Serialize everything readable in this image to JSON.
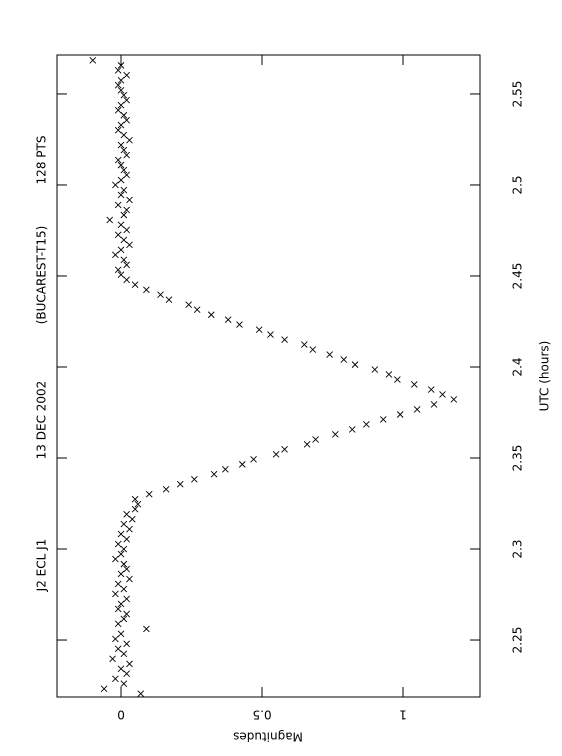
{
  "chart_data": {
    "type": "scatter",
    "annotations": [
      "J2 ECL J1",
      "13 DEC 2002",
      "(BUCAREST-T15)",
      "128 PTS"
    ],
    "x_label": "UTC (hours)",
    "y_label": "Magnitudes",
    "xlim": [
      2.2187,
      2.5714
    ],
    "xticks": [
      2.25,
      2.3,
      2.35,
      2.4,
      2.45,
      2.5,
      2.55
    ],
    "ylim": [
      -0.227,
      1.273
    ],
    "yticks": [
      0,
      0.5,
      1
    ],
    "color": "#000000",
    "x": [
      2.2205,
      2.2232,
      2.226,
      2.2287,
      2.2315,
      2.2342,
      2.2369,
      2.2397,
      2.2424,
      2.2452,
      2.2479,
      2.2506,
      2.2534,
      2.2561,
      2.2589,
      2.2616,
      2.2643,
      2.2671,
      2.2698,
      2.2726,
      2.2753,
      2.278,
      2.2808,
      2.2835,
      2.2863,
      2.289,
      2.2917,
      2.2945,
      2.2972,
      2.3,
      2.3027,
      2.3054,
      2.3082,
      2.3109,
      2.3137,
      2.3164,
      2.3191,
      2.3219,
      2.3246,
      2.3274,
      2.3301,
      2.3328,
      2.3356,
      2.3383,
      2.3411,
      2.3438,
      2.3465,
      2.3493,
      2.352,
      2.3548,
      2.3575,
      2.3602,
      2.363,
      2.3657,
      2.3685,
      2.3712,
      2.3739,
      2.3767,
      2.3794,
      2.3822,
      2.3849,
      2.3876,
      2.3904,
      2.3931,
      2.3959,
      2.3986,
      2.4013,
      2.4041,
      2.4068,
      2.4096,
      2.4123,
      2.415,
      2.4178,
      2.4205,
      2.4233,
      2.426,
      2.4287,
      2.4315,
      2.4342,
      2.437,
      2.4397,
      2.4424,
      2.4452,
      2.4479,
      2.4507,
      2.4534,
      2.4561,
      2.4589,
      2.4616,
      2.4644,
      2.4671,
      2.4698,
      2.4726,
      2.4753,
      2.4781,
      2.4808,
      2.4835,
      2.4863,
      2.489,
      2.4918,
      2.4945,
      2.4972,
      2.5,
      2.5027,
      2.5055,
      2.5082,
      2.5109,
      2.5137,
      2.5164,
      2.5192,
      2.5219,
      2.5246,
      2.5274,
      2.5301,
      2.5329,
      2.5356,
      2.5383,
      2.5411,
      2.5438,
      2.5466,
      2.5493,
      2.552,
      2.5548,
      2.5575,
      2.5603,
      2.563,
      2.5657,
      2.5685
    ],
    "values": [
      0.07,
      -0.06,
      0.01,
      -0.02,
      0.02,
      0.0,
      0.03,
      -0.03,
      0.01,
      -0.01,
      0.02,
      -0.02,
      0.0,
      0.09,
      -0.01,
      0.01,
      0.02,
      -0.01,
      0.0,
      0.02,
      -0.02,
      0.01,
      -0.01,
      0.03,
      0.0,
      0.02,
      0.01,
      -0.02,
      0.0,
      0.01,
      -0.01,
      0.02,
      0.0,
      0.03,
      0.01,
      0.04,
      0.02,
      0.05,
      0.06,
      0.05,
      0.1,
      0.16,
      0.21,
      0.26,
      0.33,
      0.37,
      0.43,
      0.47,
      0.55,
      0.58,
      0.66,
      0.69,
      0.76,
      0.82,
      0.87,
      0.93,
      0.99,
      1.05,
      1.11,
      1.18,
      1.14,
      1.1,
      1.04,
      0.98,
      0.95,
      0.9,
      0.83,
      0.79,
      0.74,
      0.68,
      0.65,
      0.58,
      0.53,
      0.49,
      0.42,
      0.38,
      0.32,
      0.27,
      0.24,
      0.17,
      0.14,
      0.09,
      0.05,
      0.02,
      0.0,
      -0.01,
      0.02,
      0.01,
      -0.02,
      0.0,
      0.03,
      0.01,
      -0.01,
      0.02,
      0.0,
      -0.04,
      0.01,
      0.02,
      -0.01,
      0.03,
      0.0,
      0.01,
      -0.02,
      0.0,
      0.02,
      0.01,
      0.0,
      -0.01,
      0.02,
      0.01,
      0.0,
      0.03,
      0.01,
      -0.01,
      0.0,
      0.02,
      0.01,
      -0.01,
      0.0,
      0.02,
      0.01,
      0.0,
      -0.01,
      0.0,
      0.02,
      -0.01,
      0.0,
      -0.1
    ]
  }
}
